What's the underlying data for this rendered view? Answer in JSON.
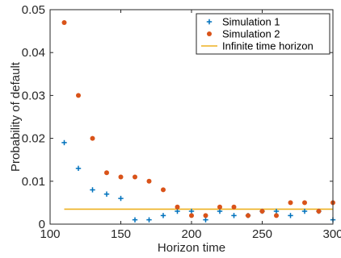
{
  "chart_data": {
    "type": "scatter",
    "title": "",
    "xlabel": "Horizon time",
    "ylabel": "Probability of default",
    "xlim": [
      100,
      300
    ],
    "ylim": [
      0,
      0.05
    ],
    "xticks": [
      100,
      150,
      200,
      250,
      300
    ],
    "xtick_labels": [
      "100",
      "150",
      "200",
      "250",
      "300"
    ],
    "yticks": [
      0,
      0.01,
      0.02,
      0.03,
      0.04,
      0.05
    ],
    "ytick_labels": [
      "0",
      "0.01",
      "0.02",
      "0.03",
      "0.04",
      "0.05"
    ],
    "grid": false,
    "legend_position": "top-right",
    "series": [
      {
        "name": "Simulation 1",
        "marker": "plus",
        "color": "#0072BD",
        "x": [
          110,
          120,
          130,
          140,
          150,
          160,
          170,
          180,
          190,
          200,
          210,
          220,
          230,
          240,
          250,
          260,
          270,
          280,
          290,
          300
        ],
        "y": [
          0.019,
          0.013,
          0.008,
          0.007,
          0.006,
          0.001,
          0.001,
          0.002,
          0.003,
          0.003,
          0.001,
          0.003,
          0.002,
          0.002,
          0.003,
          0.003,
          0.002,
          0.003,
          0.003,
          0.001
        ]
      },
      {
        "name": "Simulation 2",
        "marker": "dot",
        "color": "#D95319",
        "x": [
          110,
          120,
          130,
          140,
          150,
          160,
          170,
          180,
          190,
          200,
          210,
          220,
          230,
          240,
          250,
          260,
          270,
          280,
          290,
          300
        ],
        "y": [
          0.047,
          0.03,
          0.02,
          0.012,
          0.011,
          0.011,
          0.01,
          0.008,
          0.004,
          0.002,
          0.002,
          0.004,
          0.004,
          0.002,
          0.003,
          0.002,
          0.005,
          0.005,
          0.003,
          0.005
        ]
      },
      {
        "name": "Infinite time horizon",
        "marker": "line",
        "color": "#EDB120",
        "x": [
          110,
          300
        ],
        "y": [
          0.0035,
          0.0035
        ]
      }
    ]
  }
}
